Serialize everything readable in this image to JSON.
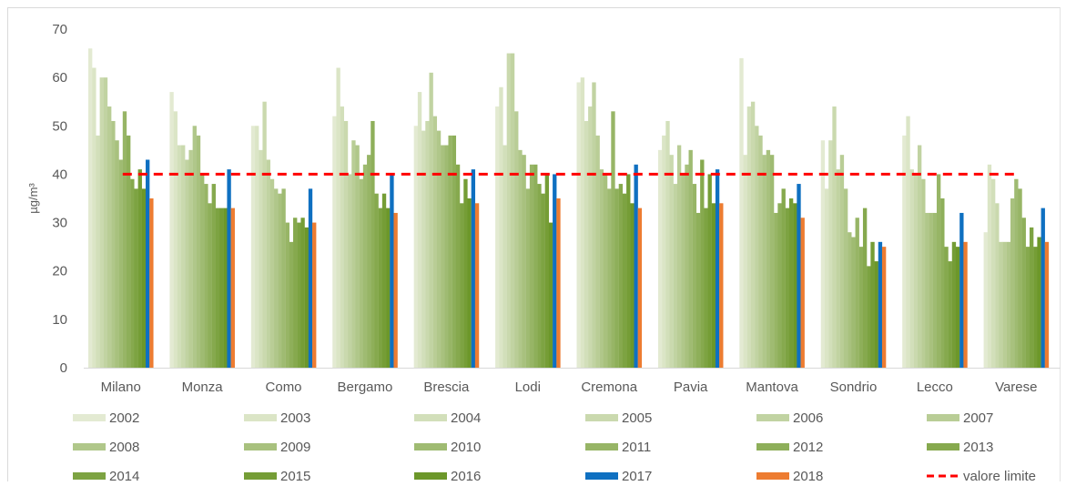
{
  "chart_data": {
    "type": "bar",
    "ylabel": "µg/m³",
    "ylim": [
      0,
      70
    ],
    "yticks": [
      0,
      10,
      20,
      30,
      40,
      50,
      60,
      70
    ],
    "grid": false,
    "legend_position": "bottom",
    "categories": [
      "Milano",
      "Monza",
      "Como",
      "Bergamo",
      "Brescia",
      "Lodi",
      "Cremona",
      "Pavia",
      "Mantova",
      "Sondrio",
      "Lecco",
      "Varese"
    ],
    "series": [
      {
        "name": "2002",
        "color": "#e3ead2",
        "values": [
          66,
          57,
          50,
          52,
          50,
          54,
          59,
          45,
          64,
          47,
          48,
          28
        ]
      },
      {
        "name": "2003",
        "color": "#dbe5c6",
        "values": [
          62,
          53,
          50,
          62,
          57,
          58,
          60,
          48,
          44,
          37,
          52,
          42
        ]
      },
      {
        "name": "2004",
        "color": "#d2dfba",
        "values": [
          48,
          46,
          45,
          54,
          49,
          46,
          51,
          51,
          54,
          47,
          41,
          39
        ]
      },
      {
        "name": "2005",
        "color": "#cad9ae",
        "values": [
          60,
          46,
          55,
          51,
          51,
          65,
          54,
          44,
          55,
          54,
          40,
          34
        ]
      },
      {
        "name": "2006",
        "color": "#c1d3a2",
        "values": [
          60,
          43,
          43,
          40,
          61,
          65,
          59,
          38,
          50,
          41,
          46,
          26
        ]
      },
      {
        "name": "2007",
        "color": "#b9cd96",
        "values": [
          54,
          45,
          39,
          47,
          52,
          53,
          48,
          46,
          48,
          44,
          39,
          26
        ]
      },
      {
        "name": "2008",
        "color": "#b0c78a",
        "values": [
          51,
          50,
          37,
          46,
          49,
          45,
          41,
          40,
          44,
          37,
          32,
          26
        ]
      },
      {
        "name": "2009",
        "color": "#a8c17e",
        "values": [
          47,
          48,
          36,
          39,
          46,
          44,
          40,
          42,
          45,
          28,
          32,
          35
        ]
      },
      {
        "name": "2010",
        "color": "#9fbb72",
        "values": [
          43,
          40,
          37,
          42,
          46,
          37,
          37,
          45,
          44,
          27,
          32,
          39
        ]
      },
      {
        "name": "2011",
        "color": "#97b566",
        "values": [
          53,
          38,
          30,
          44,
          48,
          42,
          53,
          38,
          32,
          31,
          40,
          37
        ]
      },
      {
        "name": "2012",
        "color": "#8eaf5a",
        "values": [
          48,
          34,
          26,
          51,
          48,
          42,
          37,
          32,
          34,
          25,
          35,
          31
        ]
      },
      {
        "name": "2013",
        "color": "#86a94e",
        "values": [
          39,
          38,
          31,
          36,
          42,
          38,
          38,
          43,
          37,
          33,
          25,
          25
        ]
      },
      {
        "name": "2014",
        "color": "#7da342",
        "values": [
          37,
          33,
          30,
          33,
          34,
          36,
          36,
          33,
          33,
          21,
          22,
          29
        ]
      },
      {
        "name": "2015",
        "color": "#759d36",
        "values": [
          41,
          33,
          31,
          36,
          39,
          40,
          40,
          40,
          35,
          26,
          26,
          25
        ]
      },
      {
        "name": "2016",
        "color": "#6c972a",
        "values": [
          37,
          33,
          29,
          33,
          35,
          30,
          34,
          34,
          34,
          22,
          25,
          27
        ]
      },
      {
        "name": "2017",
        "color": "#0f70c1",
        "values": [
          43,
          41,
          37,
          40,
          41,
          40,
          42,
          41,
          38,
          26,
          32,
          33
        ]
      },
      {
        "name": "2018",
        "color": "#ed7c31",
        "values": [
          35,
          33,
          30,
          32,
          34,
          35,
          33,
          34,
          31,
          25,
          26,
          26
        ]
      }
    ],
    "reference_line": {
      "name": "valore limite",
      "value": 40,
      "color": "#ff0000",
      "style": "dashed"
    }
  }
}
